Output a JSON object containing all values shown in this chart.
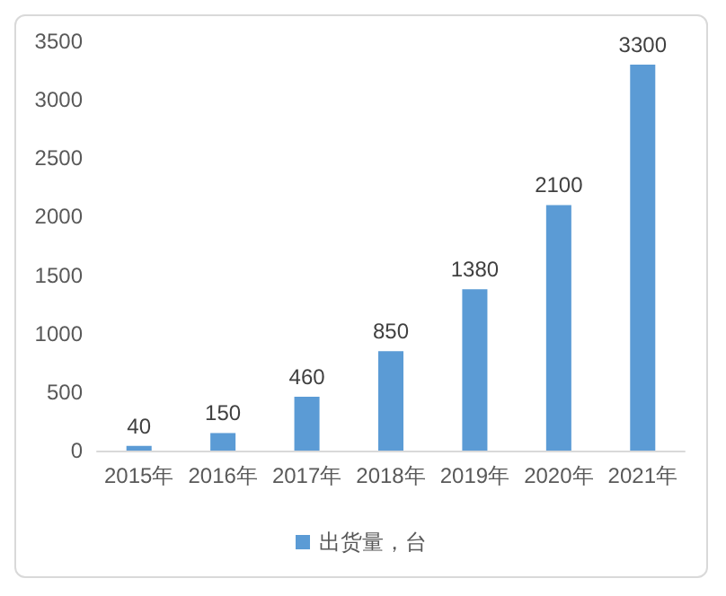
{
  "chart_data": {
    "type": "bar",
    "categories": [
      "2015年",
      "2016年",
      "2017年",
      "2018年",
      "2019年",
      "2020年",
      "2021年"
    ],
    "series": [
      {
        "name": "出货量，台",
        "color": "#5b9bd5",
        "values": [
          40,
          150,
          460,
          850,
          1380,
          2100,
          3300
        ]
      }
    ],
    "ylim": [
      0,
      3500
    ],
    "yticks": [
      0,
      500,
      1000,
      1500,
      2000,
      2500,
      3000,
      3500
    ],
    "data_labels": true,
    "legend": "bottom"
  }
}
